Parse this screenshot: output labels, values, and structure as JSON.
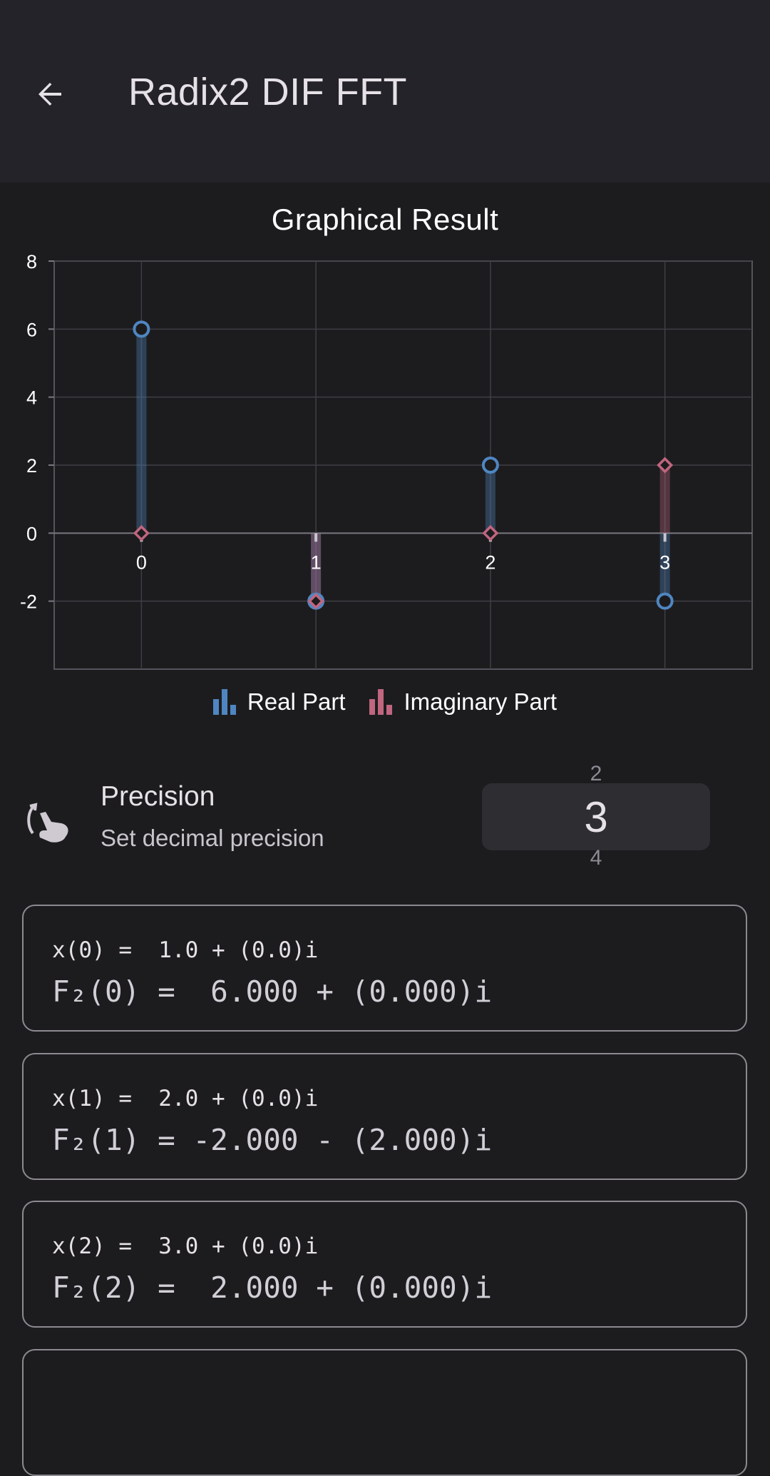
{
  "app_bar": {
    "title": "Radix2 DIF FFT",
    "back_icon": "arrow-left-icon"
  },
  "chart_data": {
    "type": "bar",
    "title": "Graphical Result",
    "categories": [
      "0",
      "1",
      "2",
      "3"
    ],
    "series": [
      {
        "name": "Real Part",
        "values": [
          6,
          -2,
          2,
          -2
        ],
        "color": "#4f86c1",
        "marker": "circle"
      },
      {
        "name": "Imaginary Part",
        "values": [
          0,
          -2,
          0,
          2
        ],
        "color": "#c0667f",
        "marker": "diamond"
      }
    ],
    "y_ticks": [
      "8",
      "6",
      "4",
      "2",
      "0",
      "-2"
    ],
    "ylim": [
      -4,
      8
    ],
    "xlim": [
      -0.5,
      3.5
    ],
    "grid": true,
    "legend_position": "bottom"
  },
  "precision": {
    "title": "Precision",
    "subtitle": "Set decimal precision",
    "icon": "touch-rotate-icon",
    "prev_value": "2",
    "value": "3",
    "next_value": "4"
  },
  "results": [
    {
      "input": "x(0) =  1.0 + (0.0)i",
      "output": "F₂(0) =  6.000 + (0.000)i"
    },
    {
      "input": "x(1) =  2.0 + (0.0)i",
      "output": "F₂(1) = -2.000 - (2.000)i"
    },
    {
      "input": "x(2) =  3.0 + (0.0)i",
      "output": "F₂(2) =  2.000 + (0.000)i"
    }
  ]
}
